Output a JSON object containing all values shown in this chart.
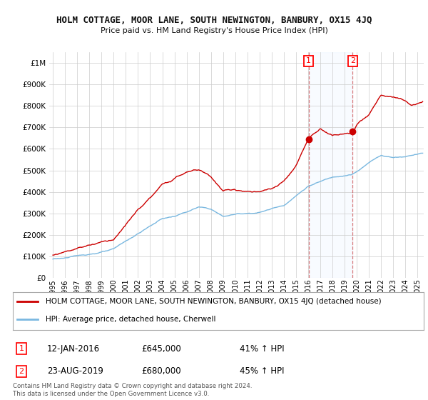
{
  "title": "HOLM COTTAGE, MOOR LANE, SOUTH NEWINGTON, BANBURY, OX15 4JQ",
  "subtitle": "Price paid vs. HM Land Registry's House Price Index (HPI)",
  "ylabel_ticks": [
    "£0",
    "£100K",
    "£200K",
    "£300K",
    "£400K",
    "£500K",
    "£600K",
    "£700K",
    "£800K",
    "£900K",
    "£1M"
  ],
  "ytick_values": [
    0,
    100000,
    200000,
    300000,
    400000,
    500000,
    600000,
    700000,
    800000,
    900000,
    1000000
  ],
  "ylim": [
    0,
    1050000
  ],
  "xlim_start": 1994.7,
  "xlim_end": 2025.5,
  "xtick_years": [
    1995,
    1996,
    1997,
    1998,
    1999,
    2000,
    2001,
    2002,
    2003,
    2004,
    2005,
    2006,
    2007,
    2008,
    2009,
    2010,
    2011,
    2012,
    2013,
    2014,
    2015,
    2016,
    2017,
    2018,
    2019,
    2020,
    2021,
    2022,
    2023,
    2024,
    2025
  ],
  "hpi_color": "#7ab8e0",
  "price_color": "#cc0000",
  "shade_color": "#ddeeff",
  "sale1_year": 2016.04,
  "sale1_price": 645000,
  "sale2_year": 2019.65,
  "sale2_price": 680000,
  "legend_label1": "HOLM COTTAGE, MOOR LANE, SOUTH NEWINGTON, BANBURY, OX15 4JQ (detached house)",
  "legend_label2": "HPI: Average price, detached house, Cherwell",
  "note1_date": "12-JAN-2016",
  "note1_price": "£645,000",
  "note1_hpi": "41% ↑ HPI",
  "note2_date": "23-AUG-2019",
  "note2_price": "£680,000",
  "note2_hpi": "45% ↑ HPI",
  "footer": "Contains HM Land Registry data © Crown copyright and database right 2024.\nThis data is licensed under the Open Government Licence v3.0.",
  "background_color": "#ffffff",
  "grid_color": "#cccccc"
}
